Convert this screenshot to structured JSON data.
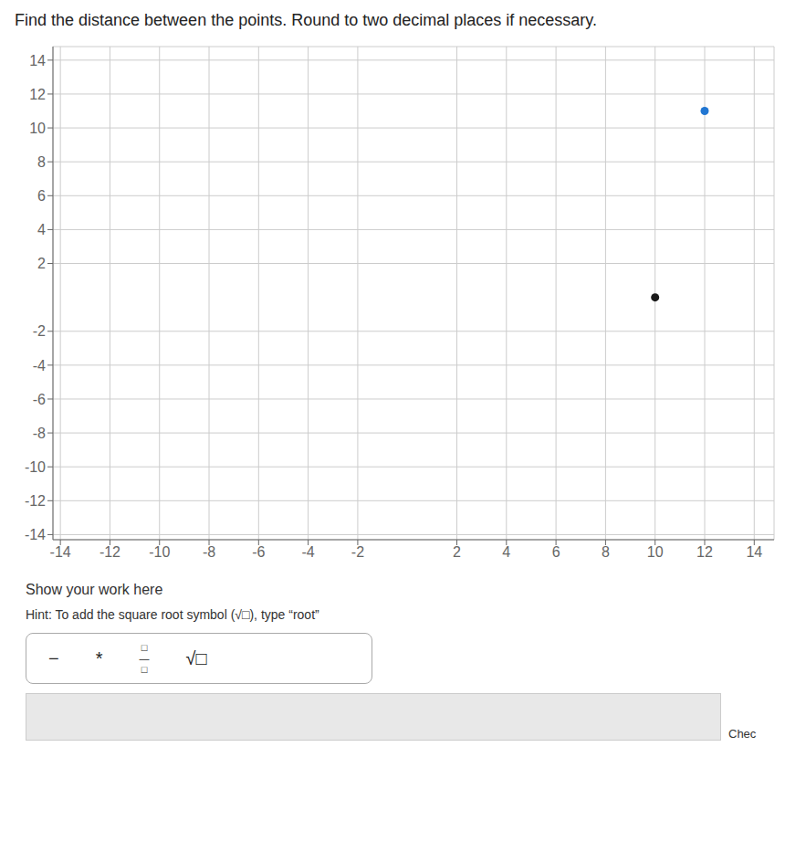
{
  "chart_data": {
    "type": "scatter",
    "title": "Find the distance between the points. Round to two decimal places if necessary.",
    "series": [
      {
        "color": "#2176d2",
        "x": [
          12
        ],
        "values": [
          11
        ]
      },
      {
        "color": "#1a1a1a",
        "x": [
          10
        ],
        "values": [
          0
        ]
      }
    ],
    "xlim": [
      -14.3,
      14.8
    ],
    "ylim": [
      -14.3,
      14.8
    ],
    "xticks": [
      -14,
      -12,
      -10,
      -8,
      -6,
      -4,
      -2,
      2,
      4,
      6,
      8,
      10,
      12,
      14
    ],
    "yticks": [
      -14,
      -12,
      -10,
      -8,
      -6,
      -4,
      -2,
      2,
      4,
      6,
      8,
      10,
      12,
      14
    ],
    "grid": true,
    "annotations": [
      "Show your work here",
      "Hint: To add the square root symbol (√□), type “root”",
      "−",
      "*",
      "□",
      "—",
      "□",
      "√□",
      "Chec"
    ]
  }
}
